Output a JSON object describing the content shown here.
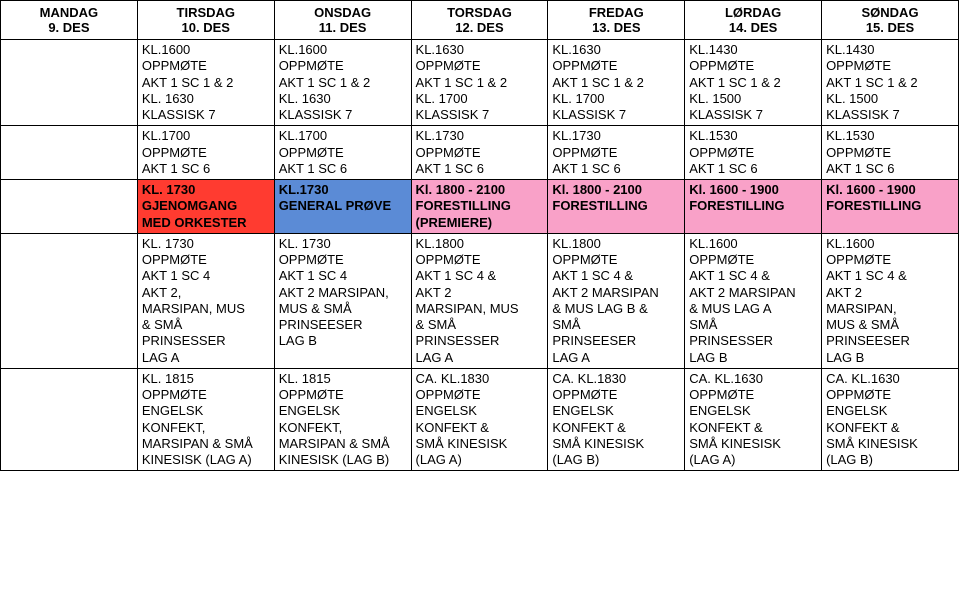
{
  "colors": {
    "white": "#ffffff",
    "blue": "#5b8bd6",
    "pink": "#f9a1c8",
    "red": "#ff3b30",
    "border": "#000000",
    "text": "#000000"
  },
  "header": [
    {
      "day": "MANDAG",
      "date": "9. DES"
    },
    {
      "day": "TIRSDAG",
      "date": "10. DES"
    },
    {
      "day": "ONSDAG",
      "date": "11. DES"
    },
    {
      "day": "TORSDAG",
      "date": "12. DES"
    },
    {
      "day": "FREDAG",
      "date": "13. DES"
    },
    {
      "day": "LØRDAG",
      "date": "14. DES"
    },
    {
      "day": "SØNDAG",
      "date": "15. DES"
    }
  ],
  "rows": [
    {
      "bold": false,
      "cells": [
        {
          "bg": "white",
          "text": ""
        },
        {
          "bg": "white",
          "text": "KL.1600\nOPPMØTE\nAKT 1 SC 1 & 2\nKL. 1630\nKLASSISK 7"
        },
        {
          "bg": "white",
          "text": "KL.1600\nOPPMØTE\nAKT 1 SC 1 & 2\nKL. 1630\nKLASSISK 7"
        },
        {
          "bg": "white",
          "text": "KL.1630\nOPPMØTE\nAKT 1 SC 1 & 2\nKL. 1700\nKLASSISK 7"
        },
        {
          "bg": "white",
          "text": "KL.1630\nOPPMØTE\nAKT 1 SC 1 & 2\nKL. 1700\nKLASSISK 7"
        },
        {
          "bg": "white",
          "text": "KL.1430\nOPPMØTE\nAKT 1 SC 1 & 2\nKL. 1500\nKLASSISK 7"
        },
        {
          "bg": "white",
          "text": "KL.1430\nOPPMØTE\nAKT 1 SC 1 & 2\nKL. 1500\nKLASSISK 7"
        }
      ]
    },
    {
      "bold": false,
      "cells": [
        {
          "bg": "white",
          "text": ""
        },
        {
          "bg": "white",
          "text": "KL.1700\nOPPMØTE\nAKT 1 SC 6"
        },
        {
          "bg": "white",
          "text": "KL.1700\nOPPMØTE\nAKT 1 SC 6"
        },
        {
          "bg": "white",
          "text": "KL.1730\nOPPMØTE\nAKT 1 SC 6"
        },
        {
          "bg": "white",
          "text": "KL.1730\nOPPMØTE\nAKT 1 SC 6"
        },
        {
          "bg": "white",
          "text": "KL.1530\nOPPMØTE\nAKT 1 SC 6"
        },
        {
          "bg": "white",
          "text": "KL.1530\nOPPMØTE\nAKT 1 SC 6"
        }
      ]
    },
    {
      "bold": true,
      "cells": [
        {
          "bg": "white",
          "text": ""
        },
        {
          "bg": "red",
          "text": "KL. 1730\nGJENOMGANG\nMED ORKESTER"
        },
        {
          "bg": "blue",
          "text": "KL.1730\nGENERAL PRØVE"
        },
        {
          "bg": "pink",
          "text": "Kl. 1800 - 2100\nFORESTILLING\n(PREMIERE)"
        },
        {
          "bg": "pink",
          "text": "Kl. 1800 - 2100\nFORESTILLING"
        },
        {
          "bg": "pink",
          "text": "Kl. 1600 - 1900\nFORESTILLING"
        },
        {
          "bg": "pink",
          "text": "Kl. 1600 - 1900\nFORESTILLING"
        }
      ]
    },
    {
      "bold": false,
      "cells": [
        {
          "bg": "white",
          "text": ""
        },
        {
          "bg": "white",
          "text": "KL. 1730\nOPPMØTE\nAKT 1 SC 4\nAKT 2,\nMARSIPAN, MUS\n& SMÅ\nPRINSESSER\nLAG A"
        },
        {
          "bg": "white",
          "text": "KL. 1730\nOPPMØTE\nAKT 1 SC 4\nAKT 2 MARSIPAN,\nMUS & SMÅ\nPRINSEESER\nLAG B"
        },
        {
          "bg": "white",
          "text": "KL.1800\nOPPMØTE\nAKT 1 SC 4 &\nAKT 2\nMARSIPAN, MUS\n& SMÅ\nPRINSESSER\nLAG A"
        },
        {
          "bg": "white",
          "text": "KL.1800\nOPPMØTE\nAKT 1 SC 4 &\nAKT 2 MARSIPAN\n& MUS LAG B &\nSMÅ\nPRINSEESER\nLAG A"
        },
        {
          "bg": "white",
          "text": "KL.1600\nOPPMØTE\nAKT 1 SC 4 &\nAKT 2 MARSIPAN\n& MUS LAG A\nSMÅ\nPRINSESSER\nLAG B"
        },
        {
          "bg": "white",
          "text": "KL.1600\nOPPMØTE\nAKT 1 SC 4 &\nAKT 2\nMARSIPAN,\nMUS & SMÅ\nPRINSEESER\nLAG B"
        }
      ]
    },
    {
      "bold": false,
      "cells": [
        {
          "bg": "white",
          "text": ""
        },
        {
          "bg": "white",
          "text": "KL. 1815\nOPPMØTE\nENGELSK\nKONFEKT,\nMARSIPAN & SMÅ\nKINESISK (LAG A)"
        },
        {
          "bg": "white",
          "text": "KL. 1815\nOPPMØTE\nENGELSK\nKONFEKT,\nMARSIPAN & SMÅ\nKINESISK (LAG B)"
        },
        {
          "bg": "white",
          "text": "CA. KL.1830\nOPPMØTE\nENGELSK\nKONFEKT &\nSMÅ KINESISK\n(LAG A)"
        },
        {
          "bg": "white",
          "text": "CA. KL.1830\nOPPMØTE\nENGELSK\nKONFEKT &\nSMÅ KINESISK\n(LAG B)"
        },
        {
          "bg": "white",
          "text": "CA. KL.1630\nOPPMØTE\nENGELSK\nKONFEKT &\nSMÅ KINESISK\n(LAG A)"
        },
        {
          "bg": "white",
          "text": "CA. KL.1630\nOPPMØTE\nENGELSK\nKONFEKT &\nSMÅ KINESISK\n(LAG B)"
        }
      ]
    }
  ]
}
